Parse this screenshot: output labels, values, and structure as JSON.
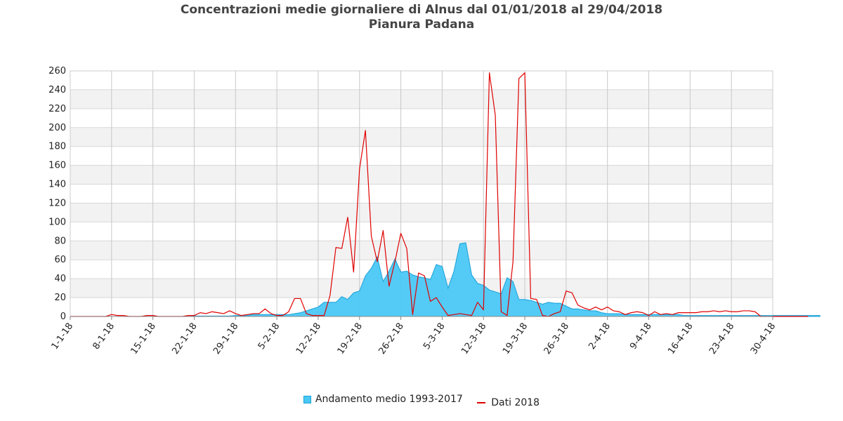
{
  "chart_data": {
    "type": "area",
    "title": "Concentrazioni medie giornaliere di Alnus dal 01/01/2018 al 29/04/2018",
    "subtitle": "Pianura Padana",
    "xlabel": "",
    "ylabel": "",
    "ylim": [
      0,
      260
    ],
    "y_ticks": [
      0,
      20,
      40,
      60,
      80,
      100,
      120,
      140,
      160,
      180,
      200,
      220,
      240,
      260
    ],
    "x_tick_labels": [
      "1-1-18",
      "8-1-18",
      "15-1-18",
      "22-1-18",
      "29-1-18",
      "5-2-18",
      "12-2-18",
      "19-2-18",
      "26-2-18",
      "5-3-18",
      "12-3-18",
      "19-3-18",
      "26-3-18",
      "2-4-18",
      "9-4-18",
      "16-4-18",
      "23-4-18",
      "30-4-18"
    ],
    "grid": true,
    "legend_position": "bottom",
    "colors": {
      "series1": "#4ac8f5",
      "series2": "#e00000"
    },
    "series": [
      {
        "name": "Andamento medio 1993-2017",
        "type": "area",
        "values": [
          0,
          0,
          0,
          0,
          0,
          0,
          0,
          0,
          0,
          0,
          0,
          0,
          0,
          0,
          0,
          0,
          0,
          0,
          0,
          0,
          0,
          0.5,
          0.5,
          0.5,
          0.5,
          0.5,
          0.5,
          0.5,
          1,
          1,
          1,
          2,
          2,
          2,
          2,
          2,
          2,
          2,
          3,
          4,
          6,
          8,
          10,
          15,
          15,
          15,
          21,
          18,
          25,
          27,
          43,
          51,
          63,
          37,
          48,
          61,
          47,
          48,
          44,
          42,
          41,
          39,
          55,
          53,
          30,
          48,
          77,
          78,
          44,
          35,
          33,
          28,
          26,
          24,
          41,
          37,
          18,
          18,
          17,
          15,
          13,
          15,
          14,
          14,
          11,
          8,
          8,
          7,
          6,
          6,
          4,
          3,
          3,
          3,
          2,
          2,
          2,
          2,
          2,
          2,
          2,
          2,
          2,
          2,
          1,
          1,
          1,
          1,
          1,
          1,
          1,
          1,
          1,
          1,
          1,
          1,
          1,
          1,
          1,
          1,
          1,
          1,
          1,
          1,
          1,
          1,
          1,
          1
        ]
      },
      {
        "name": "Dati 2018",
        "type": "line",
        "values": [
          0,
          0,
          0,
          0,
          0,
          0,
          0,
          2,
          1,
          1,
          0,
          0,
          0,
          1,
          1,
          0,
          0,
          0,
          0,
          0,
          1,
          1,
          4,
          3,
          5,
          4,
          3,
          6,
          3,
          1,
          2,
          3,
          3,
          8,
          3,
          1,
          1,
          5,
          19,
          19,
          3,
          1,
          1,
          1,
          22,
          73,
          72,
          105,
          47,
          156,
          197,
          85,
          58,
          91,
          32,
          58,
          88,
          72,
          2,
          46,
          43,
          16,
          20,
          10,
          1,
          2,
          3,
          2,
          1,
          15,
          7,
          258,
          213,
          5,
          1,
          58,
          252,
          258,
          19,
          18,
          1,
          0,
          3,
          5,
          27,
          25,
          12,
          9,
          7,
          10,
          7,
          10,
          6,
          5,
          2,
          4,
          5,
          4,
          1,
          5,
          2,
          3,
          2,
          4,
          4,
          4,
          4,
          5,
          5,
          6,
          5,
          6,
          5,
          5,
          6,
          6,
          5,
          0,
          0,
          0,
          0,
          0,
          0,
          0,
          0,
          0
        ]
      }
    ]
  }
}
